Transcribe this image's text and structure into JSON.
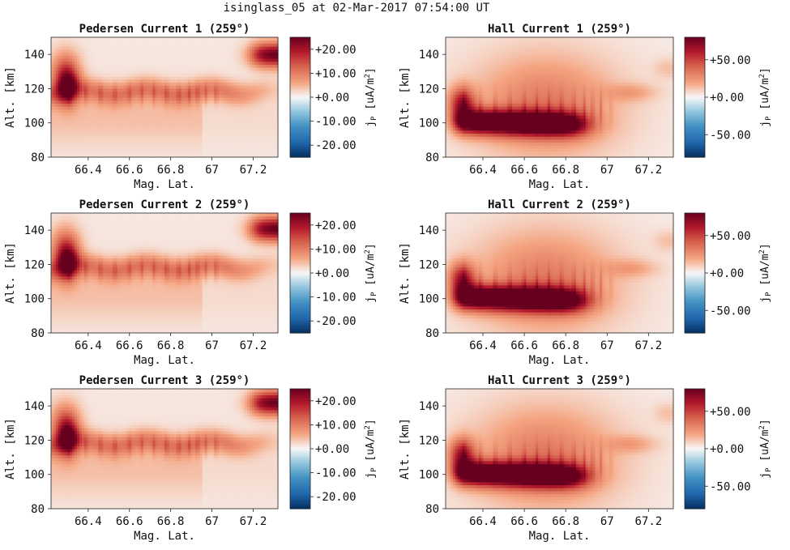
{
  "figure": {
    "title": "isinglass_05 at 02-Mar-2017 07:54:00 UT"
  },
  "colors": {
    "cmap_low": "#053061",
    "cmap_mid": "#f7f7f7",
    "cmap_high": "#67001f"
  },
  "chart_data": [
    {
      "type": "heatmap",
      "id": "ped1",
      "title": "Pedersen Current 1 (259°)",
      "kind": "pedersen",
      "xlabel": "Mag. Lat.",
      "ylabel": "Alt. [km]",
      "xlim": [
        66.22,
        67.32
      ],
      "ylim": [
        80,
        150
      ],
      "xticks": [
        {
          "v": 66.4,
          "t": "66.4"
        },
        {
          "v": 66.6,
          "t": "66.6"
        },
        {
          "v": 66.8,
          "t": "66.8"
        },
        {
          "v": 67.0,
          "t": "67"
        },
        {
          "v": 67.2,
          "t": "67.2"
        }
      ],
      "yticks": [
        {
          "v": 80,
          "t": "80"
        },
        {
          "v": 100,
          "t": "100"
        },
        {
          "v": 120,
          "t": "120"
        },
        {
          "v": 140,
          "t": "140"
        }
      ],
      "colorbar": {
        "label": "j_P [uA/m^2]",
        "vmin": -25,
        "vmax": 25,
        "ticks": [
          {
            "v": 20,
            "t": "+20.00"
          },
          {
            "v": 10,
            "t": "+10.00"
          },
          {
            "v": 0,
            "t": "+0.00"
          },
          {
            "v": -10,
            "t": "-10.00"
          },
          {
            "v": -20,
            "t": "-20.00"
          }
        ]
      }
    },
    {
      "type": "heatmap",
      "id": "hall1",
      "title": "Hall Current 1 (259°)",
      "kind": "hall",
      "xlabel": "Mag. Lat.",
      "ylabel": "Alt. [km]",
      "xlim": [
        66.22,
        67.32
      ],
      "ylim": [
        80,
        150
      ],
      "xticks": [
        {
          "v": 66.4,
          "t": "66.4"
        },
        {
          "v": 66.6,
          "t": "66.6"
        },
        {
          "v": 66.8,
          "t": "66.8"
        },
        {
          "v": 67.0,
          "t": "67"
        },
        {
          "v": 67.2,
          "t": "67.2"
        }
      ],
      "yticks": [
        {
          "v": 80,
          "t": "80"
        },
        {
          "v": 100,
          "t": "100"
        },
        {
          "v": 120,
          "t": "120"
        },
        {
          "v": 140,
          "t": "140"
        }
      ],
      "colorbar": {
        "label": "j_P [uA/m^2]",
        "vmin": -80,
        "vmax": 80,
        "ticks": [
          {
            "v": 50,
            "t": "+50.00"
          },
          {
            "v": 0,
            "t": "+0.00"
          },
          {
            "v": -50,
            "t": "-50.00"
          }
        ]
      }
    },
    {
      "type": "heatmap",
      "id": "ped2",
      "title": "Pedersen Current 2 (259°)",
      "kind": "pedersen",
      "xlabel": "Mag. Lat.",
      "ylabel": "Alt. [km]",
      "xlim": [
        66.22,
        67.32
      ],
      "ylim": [
        80,
        150
      ],
      "xticks": [
        {
          "v": 66.4,
          "t": "66.4"
        },
        {
          "v": 66.6,
          "t": "66.6"
        },
        {
          "v": 66.8,
          "t": "66.8"
        },
        {
          "v": 67.0,
          "t": "67"
        },
        {
          "v": 67.2,
          "t": "67.2"
        }
      ],
      "yticks": [
        {
          "v": 80,
          "t": "80"
        },
        {
          "v": 100,
          "t": "100"
        },
        {
          "v": 120,
          "t": "120"
        },
        {
          "v": 140,
          "t": "140"
        }
      ],
      "colorbar": {
        "label": "j_P [uA/m^2]",
        "vmin": -25,
        "vmax": 25,
        "ticks": [
          {
            "v": 20,
            "t": "+20.00"
          },
          {
            "v": 10,
            "t": "+10.00"
          },
          {
            "v": 0,
            "t": "+0.00"
          },
          {
            "v": -10,
            "t": "-10.00"
          },
          {
            "v": -20,
            "t": "-20.00"
          }
        ]
      }
    },
    {
      "type": "heatmap",
      "id": "hall2",
      "title": "Hall Current 2 (259°)",
      "kind": "hall",
      "xlabel": "Mag. Lat.",
      "ylabel": "Alt. [km]",
      "xlim": [
        66.22,
        67.32
      ],
      "ylim": [
        80,
        150
      ],
      "xticks": [
        {
          "v": 66.4,
          "t": "66.4"
        },
        {
          "v": 66.6,
          "t": "66.6"
        },
        {
          "v": 66.8,
          "t": "66.8"
        },
        {
          "v": 67.0,
          "t": "67"
        },
        {
          "v": 67.2,
          "t": "67.2"
        }
      ],
      "yticks": [
        {
          "v": 80,
          "t": "80"
        },
        {
          "v": 100,
          "t": "100"
        },
        {
          "v": 120,
          "t": "120"
        },
        {
          "v": 140,
          "t": "140"
        }
      ],
      "colorbar": {
        "label": "j_P [uA/m^2]",
        "vmin": -80,
        "vmax": 80,
        "ticks": [
          {
            "v": 50,
            "t": "+50.00"
          },
          {
            "v": 0,
            "t": "+0.00"
          },
          {
            "v": -50,
            "t": "-50.00"
          }
        ]
      }
    },
    {
      "type": "heatmap",
      "id": "ped3",
      "title": "Pedersen Current 3 (259°)",
      "kind": "pedersen",
      "xlabel": "Mag. Lat.",
      "ylabel": "Alt. [km]",
      "xlim": [
        66.22,
        67.32
      ],
      "ylim": [
        80,
        150
      ],
      "xticks": [
        {
          "v": 66.4,
          "t": "66.4"
        },
        {
          "v": 66.6,
          "t": "66.6"
        },
        {
          "v": 66.8,
          "t": "66.8"
        },
        {
          "v": 67.0,
          "t": "67"
        },
        {
          "v": 67.2,
          "t": "67.2"
        }
      ],
      "yticks": [
        {
          "v": 80,
          "t": "80"
        },
        {
          "v": 100,
          "t": "100"
        },
        {
          "v": 120,
          "t": "120"
        },
        {
          "v": 140,
          "t": "140"
        }
      ],
      "colorbar": {
        "label": "j_P [uA/m^2]",
        "vmin": -25,
        "vmax": 25,
        "ticks": [
          {
            "v": 20,
            "t": "+20.00"
          },
          {
            "v": 10,
            "t": "+10.00"
          },
          {
            "v": 0,
            "t": "+0.00"
          },
          {
            "v": -10,
            "t": "-10.00"
          },
          {
            "v": -20,
            "t": "-20.00"
          }
        ]
      }
    },
    {
      "type": "heatmap",
      "id": "hall3",
      "title": "Hall Current 3 (259°)",
      "kind": "hall",
      "xlabel": "Mag. Lat.",
      "ylabel": "Alt. [km]",
      "xlim": [
        66.22,
        67.32
      ],
      "ylim": [
        80,
        150
      ],
      "xticks": [
        {
          "v": 66.4,
          "t": "66.4"
        },
        {
          "v": 66.6,
          "t": "66.6"
        },
        {
          "v": 66.8,
          "t": "66.8"
        },
        {
          "v": 67.0,
          "t": "67"
        },
        {
          "v": 67.2,
          "t": "67.2"
        }
      ],
      "yticks": [
        {
          "v": 80,
          "t": "80"
        },
        {
          "v": 100,
          "t": "100"
        },
        {
          "v": 120,
          "t": "120"
        },
        {
          "v": 140,
          "t": "140"
        }
      ],
      "colorbar": {
        "label": "j_P [uA/m^2]",
        "vmin": -80,
        "vmax": 80,
        "ticks": [
          {
            "v": 50,
            "t": "+50.00"
          },
          {
            "v": 0,
            "t": "+0.00"
          },
          {
            "v": -50,
            "t": "-50.00"
          }
        ]
      }
    }
  ]
}
